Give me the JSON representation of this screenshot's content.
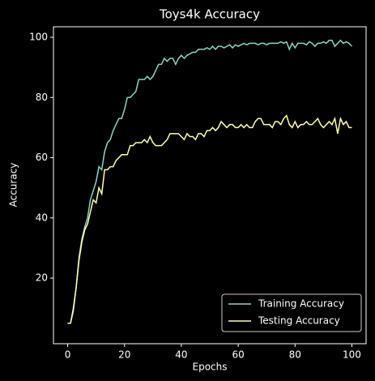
{
  "chart_data": {
    "type": "line",
    "title": "Toys4k Accuracy",
    "xlabel": "Epochs",
    "ylabel": "Accuracy",
    "x": [
      0,
      1,
      2,
      3,
      4,
      5,
      6,
      7,
      8,
      9,
      10,
      11,
      12,
      13,
      14,
      15,
      16,
      17,
      18,
      19,
      20,
      21,
      22,
      23,
      24,
      25,
      26,
      27,
      28,
      29,
      30,
      31,
      32,
      33,
      34,
      35,
      36,
      37,
      38,
      39,
      40,
      41,
      42,
      43,
      44,
      45,
      46,
      47,
      48,
      49,
      50,
      51,
      52,
      53,
      54,
      55,
      56,
      57,
      58,
      59,
      60,
      61,
      62,
      63,
      64,
      65,
      66,
      67,
      68,
      69,
      70,
      71,
      72,
      73,
      74,
      75,
      76,
      77,
      78,
      79,
      80,
      81,
      82,
      83,
      84,
      85,
      86,
      87,
      88,
      89,
      90,
      91,
      92,
      93,
      94,
      95,
      96,
      97,
      98,
      99,
      100
    ],
    "series": [
      {
        "name": "Training Accuracy",
        "color": "#8dd3c7",
        "values": [
          5,
          5,
          9,
          17,
          27,
          33,
          37,
          40,
          46,
          49,
          52,
          57,
          56,
          62,
          65,
          66,
          69,
          71,
          73,
          73,
          76,
          80,
          80,
          81,
          82,
          86,
          86,
          86,
          87,
          86,
          87,
          89,
          91,
          91,
          93,
          92,
          93,
          93,
          91,
          93,
          94,
          93,
          94,
          94.5,
          95,
          95,
          96,
          96,
          96,
          96.5,
          96,
          97,
          96,
          97,
          97,
          96.5,
          97,
          97.5,
          96.5,
          97.5,
          97,
          97.5,
          98,
          97.5,
          98,
          98,
          98,
          97.5,
          98,
          98,
          97.5,
          98,
          98,
          98,
          98,
          98.5,
          98,
          98.5,
          96,
          98,
          96.5,
          98,
          98,
          98,
          97.5,
          98.5,
          98,
          97,
          98,
          98,
          98.5,
          98,
          99,
          99,
          97,
          98,
          99,
          98,
          98.5,
          98,
          97
        ]
      },
      {
        "name": "Testing Accuracy",
        "color": "#feffb3",
        "values": [
          5,
          5,
          10,
          17,
          26,
          32,
          36,
          38,
          42,
          46,
          45,
          50,
          48,
          56,
          56,
          57,
          57,
          59,
          60,
          61,
          61,
          61,
          64,
          64,
          65,
          65,
          65,
          66,
          65,
          67,
          65,
          64,
          64,
          64,
          65,
          66,
          68,
          68,
          68,
          68,
          67,
          66,
          68,
          67,
          67,
          66,
          68,
          68,
          67,
          69,
          69,
          70,
          69,
          70,
          72,
          71,
          70,
          71,
          71,
          70,
          70,
          71,
          70,
          71,
          70,
          70,
          72,
          73,
          73,
          71,
          71,
          71,
          70,
          72,
          72,
          71,
          73,
          74,
          71,
          70,
          72,
          70,
          71,
          71,
          72,
          71,
          71,
          72,
          73,
          71,
          70,
          71,
          72,
          71,
          73,
          68,
          73,
          71,
          72,
          70,
          70
        ]
      }
    ],
    "xlim": [
      -5,
      105
    ],
    "ylim": [
      -1.8,
      103.5
    ],
    "xticks": [
      0,
      20,
      40,
      60,
      80,
      100
    ],
    "yticks": [
      20,
      40,
      60,
      80,
      100
    ],
    "legend": "lower right"
  }
}
